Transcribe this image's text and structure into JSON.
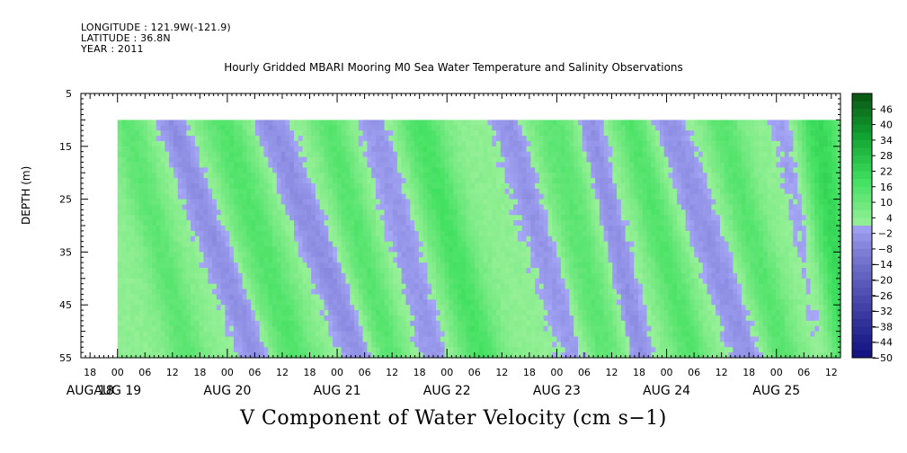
{
  "header": {
    "longitude": "LONGITUDE : 121.9W(-121.9)",
    "latitude": "LATITUDE : 36.8N",
    "year": "YEAR : 2011"
  },
  "chart_data": {
    "type": "heatmap",
    "title": "Hourly Gridded MBARI Mooring M0 Sea Water Temperature and Salinity Observations",
    "xlabel": "V Component of Water Velocity (cm s−1)",
    "ylabel": "DEPTH (m)",
    "y_ticks": [
      5,
      15,
      25,
      35,
      45,
      55
    ],
    "ylim": [
      5,
      55
    ],
    "y_data_range": [
      10,
      55
    ],
    "x_hour_labels": [
      "18",
      "00",
      "06",
      "12",
      "18",
      "00",
      "06",
      "12",
      "18",
      "00",
      "06",
      "12",
      "18",
      "00",
      "06",
      "12",
      "18",
      "00",
      "06",
      "12",
      "18",
      "00",
      "06",
      "12",
      "18",
      "00",
      "06",
      "12"
    ],
    "x_day_labels": [
      "AUG 18",
      "AUG 19",
      "AUG 20",
      "AUG 21",
      "AUG 22",
      "AUG 23",
      "AUG 24",
      "AUG 25"
    ],
    "x_range_hours": [
      -8,
      158
    ],
    "data_start_hour": 0,
    "colorbar_labels": [
      "46",
      "40",
      "34",
      "28",
      "22",
      "16",
      "10",
      "4",
      "−2",
      "−8",
      "−14",
      "−20",
      "−26",
      "−32",
      "−38",
      "−44",
      "−50"
    ],
    "colorbar_range": [
      -50,
      52
    ],
    "colorbar_step": 3,
    "colors": {
      "positive_low": "#98f098",
      "positive_mid": "#40e060",
      "positive_high": "#10a030",
      "negative_low": "#a8a8f8",
      "negative_high": "#101080",
      "dark_green": "#0a5a14"
    },
    "grid": false,
    "legend": "right",
    "features": [
      {
        "hour": 20,
        "width": 3.5,
        "amp": -8,
        "slope": 0.42
      },
      {
        "hour": 42,
        "width": 4,
        "amp": -8,
        "slope": 0.45
      },
      {
        "hour": 62,
        "width": 4,
        "amp": -6,
        "slope": 0.3
      },
      {
        "hour": 92,
        "width": 3.5,
        "amp": -7,
        "slope": 0.35
      },
      {
        "hour": 108,
        "width": 3,
        "amp": -8,
        "slope": 0.25
      },
      {
        "hour": 128,
        "width": 4,
        "amp": -7,
        "slope": 0.4
      },
      {
        "hour": 150,
        "width": 3,
        "amp": -6,
        "slope": 0.2
      },
      {
        "hour": 8,
        "width": 4,
        "amp": 10,
        "slope": 0.3
      },
      {
        "hour": 30,
        "width": 5,
        "amp": 12,
        "slope": 0.35
      },
      {
        "hour": 52,
        "width": 4,
        "amp": 11,
        "slope": 0.3
      },
      {
        "hour": 72,
        "width": 5,
        "amp": 14,
        "slope": 0.3
      },
      {
        "hour": 100,
        "width": 5,
        "amp": 10,
        "slope": 0.25
      },
      {
        "hour": 118,
        "width": 4,
        "amp": 12,
        "slope": 0.3
      },
      {
        "hour": 138,
        "width": 4,
        "amp": 11,
        "slope": 0.3
      },
      {
        "hour": 156,
        "width": 5,
        "amp": 18,
        "slope": 0.15
      }
    ]
  }
}
